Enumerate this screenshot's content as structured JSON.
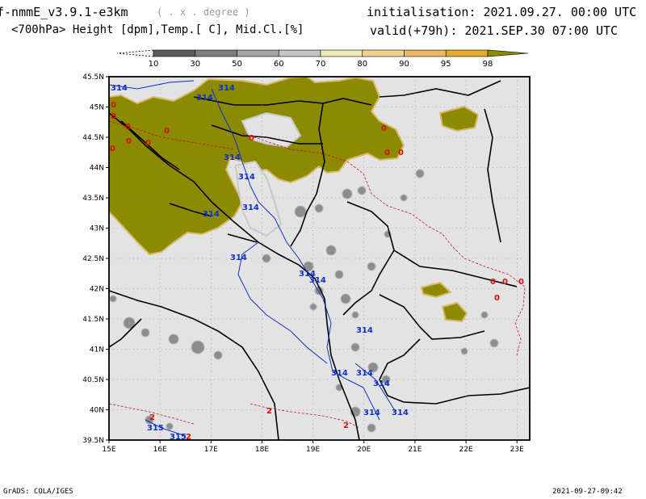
{
  "header": {
    "model_title": "f-nmmE_v3.9.1-e3km",
    "unit_note": "( . x . degree )",
    "variables": "<700hPa> Height [dpm],Temp.[ C], Mid.Cl.[%]",
    "initialisation": "initialisation: 2021.09.27.  00:00 UTC",
    "valid": "valid(+79h): 2021.SEP.30 07:00 UTC"
  },
  "colorbar": {
    "labels": [
      "10",
      "30",
      "50",
      "60",
      "70",
      "80",
      "90",
      "95",
      "98"
    ],
    "colors": [
      "#f2f2f2",
      "#5a5a5a",
      "#7d7d7d",
      "#a4a4a4",
      "#c4c4c4",
      "#ede9b4",
      "#efd28c",
      "#eab865",
      "#e9ad2e",
      "#8c8a00"
    ]
  },
  "map": {
    "lat_labels": [
      "45.5N",
      "45N",
      "44.5N",
      "44N",
      "43.5N",
      "43N",
      "42.5N",
      "42N",
      "41.5N",
      "41N",
      "40.5N",
      "40N",
      "39.5N"
    ],
    "lon_labels": [
      "15E",
      "16E",
      "17E",
      "18E",
      "19E",
      "20E",
      "21E",
      "22E",
      "23E"
    ],
    "background_color": "#e3e3e3",
    "cloud_color": "#8c8a00",
    "height_contour_color": "#1030c8",
    "temp_contour_color": "#d01010",
    "height_labels": [
      "314",
      "314",
      "314",
      "314",
      "314",
      "314",
      "314",
      "314",
      "314",
      "314",
      "314",
      "314",
      "314",
      "314",
      "314",
      "314",
      "315",
      "315"
    ],
    "temp_labels": [
      "0",
      "0",
      "0",
      "0",
      "0",
      "0",
      "0",
      "0",
      "0",
      "0",
      "0",
      "0",
      "0",
      "0",
      "0",
      "2",
      "2",
      "2",
      "2"
    ]
  },
  "footer": {
    "left": "GrADS: COLA/IGES",
    "right": "2021-09-27-09:42"
  }
}
